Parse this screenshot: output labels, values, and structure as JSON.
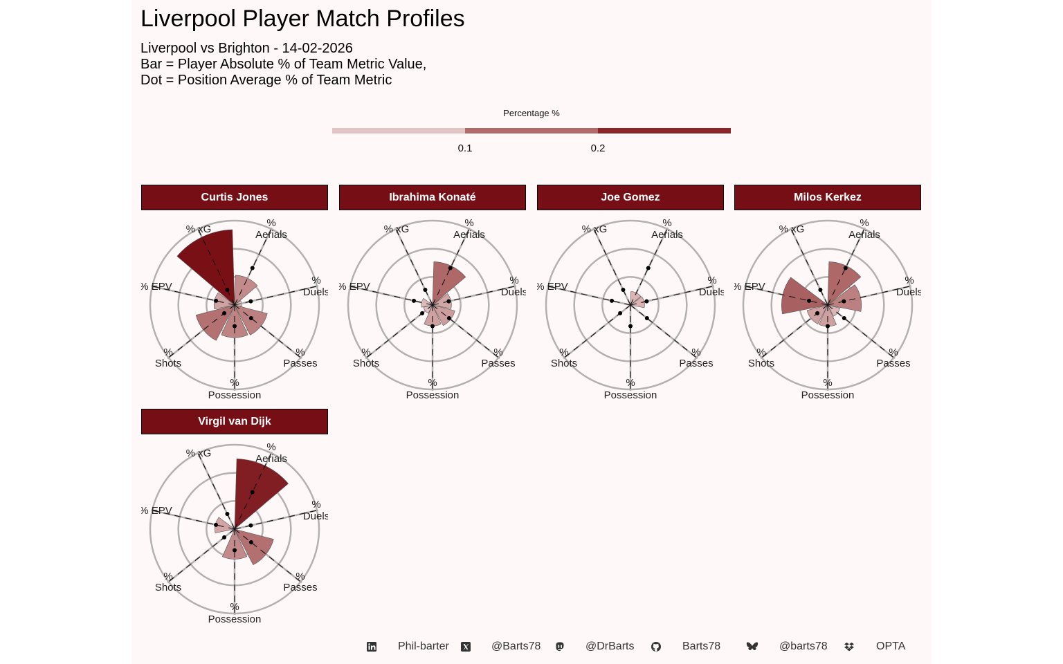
{
  "title": "Liverpool Player Match Profiles",
  "subtitle_lines": [
    "Liverpool vs Brighton - 14-02-2026",
    "Bar = Player Absolute % of Team Metric Value,",
    "Dot = Position Average % of Team Metric"
  ],
  "legend": {
    "title": "Percentage %",
    "ticks": [
      "0.1",
      "0.2"
    ],
    "bins": [
      {
        "range": [
          0,
          0.1
        ],
        "color": "#e3c4c4"
      },
      {
        "range": [
          0.1,
          0.2
        ],
        "color": "#b06b6b"
      },
      {
        "range": [
          0.2,
          0.3
        ],
        "color": "#8b2528"
      }
    ]
  },
  "chart_data": {
    "type": "polar-bar",
    "title": "Liverpool Player Match Profiles",
    "metrics": [
      "Aerials",
      "Duels",
      "Passes",
      "Possession",
      "Shots",
      "EPV",
      "xG"
    ],
    "metric_labels": [
      [
        "%",
        "Aerials"
      ],
      [
        "%",
        "Duels"
      ],
      [
        "%",
        "Passes"
      ],
      [
        "%",
        "Possession"
      ],
      [
        "%",
        "Shots"
      ],
      [
        "% EPV"
      ],
      [
        "% xG"
      ]
    ],
    "rlim": [
      0,
      0.3
    ],
    "grid_circles": [
      0.1,
      0.2,
      0.3
    ],
    "position_average": [
      0.146,
      0.059,
      0.075,
      0.075,
      0.047,
      0.068,
      0.06
    ],
    "players": [
      {
        "name": "Curtis Jones",
        "values": [
          0.106,
          0.026,
          0.12,
          0.116,
          0.142,
          0.073,
          0.268
        ]
      },
      {
        "name": "Ibrahima Konaté",
        "values": [
          0.154,
          0.067,
          0.082,
          0.074,
          0.033,
          0.04,
          0.01
        ]
      },
      {
        "name": "Joe Gomez",
        "values": [
          0.048,
          0.05,
          0.0,
          0.0,
          0.0,
          0.0,
          0.0
        ]
      },
      {
        "name": "Milos Kerkez",
        "values": [
          0.154,
          0.12,
          0.045,
          0.076,
          0.076,
          0.164,
          0.0
        ]
      },
      {
        "name": "Virgil van Dijk",
        "values": [
          0.25,
          0.01,
          0.143,
          0.107,
          0.01,
          0.07,
          0.0
        ]
      }
    ],
    "color_scale": [
      "#efd6d6",
      "#b06b6b",
      "#780e14"
    ]
  },
  "footer": [
    {
      "icon": "linkedin-icon",
      "text": "Phil-barter"
    },
    {
      "icon": "x-twitter-icon",
      "text": "@Barts78"
    },
    {
      "icon": "mastodon-icon",
      "text": "@DrBarts"
    },
    {
      "icon": "github-icon",
      "text": "Barts78"
    },
    {
      "icon": "bluesky-icon",
      "text": "@barts78"
    },
    {
      "icon": "dropbox-icon",
      "text": "OPTA"
    }
  ]
}
